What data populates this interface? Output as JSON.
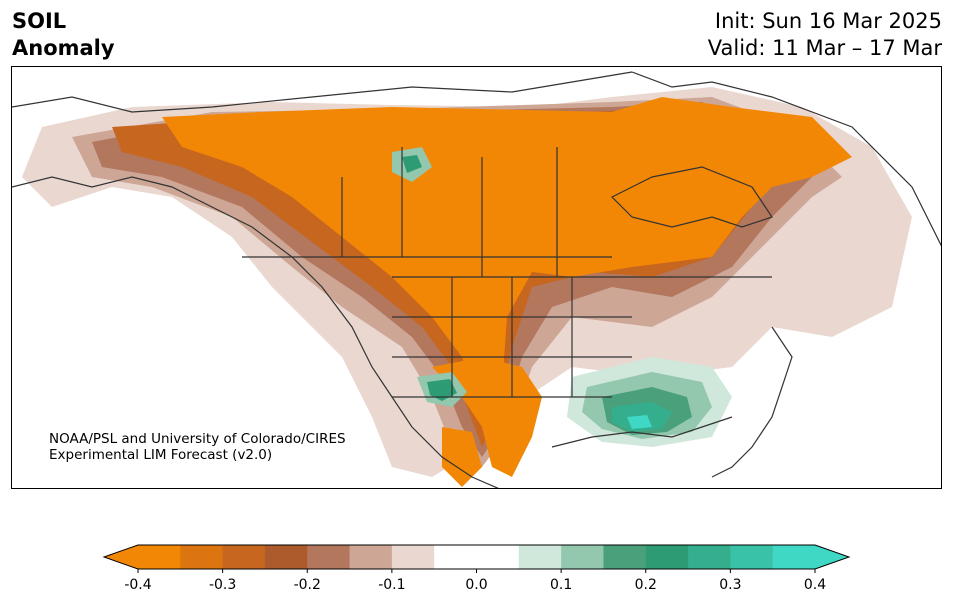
{
  "title": {
    "line1": "SOIL",
    "line2": "Anomaly"
  },
  "init": {
    "line1": "Init: Sun 16 Mar 2025",
    "line2": "Valid: 11 Mar – 17 Mar"
  },
  "credit": {
    "line1": "NOAA/PSL and University of Colorado/CIRES",
    "line2": "Experimental LIM Forecast (v2.0)"
  },
  "colorbar": {
    "colors": [
      "#f28705",
      "#dc7410",
      "#c7661f",
      "#ad5a2d",
      "#b3775d",
      "#cda696",
      "#ead8d0",
      "#ffffff",
      "#ffffff",
      "#d0e7dc",
      "#93c8ae",
      "#4aa07a",
      "#2d9b74",
      "#34ae8d",
      "#3ac2a8",
      "#3fd8c5"
    ],
    "ticks": [
      "-0.4",
      "-0.3",
      "-0.2",
      "-0.1",
      "0.0",
      "0.1",
      "0.2",
      "0.3",
      "0.4"
    ],
    "extend": "both"
  }
}
